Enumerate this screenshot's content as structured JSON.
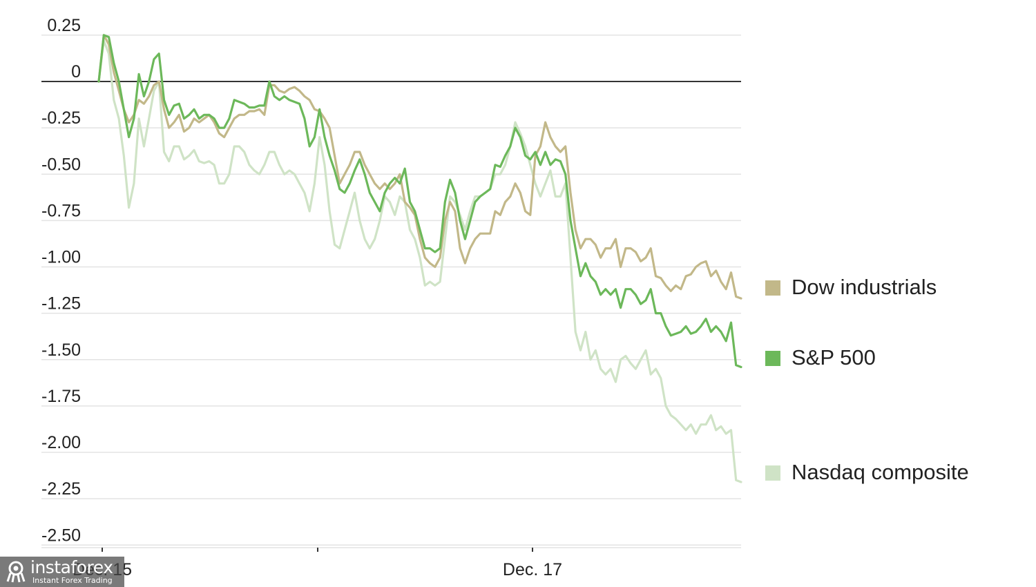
{
  "chart_data": {
    "type": "line",
    "title": "",
    "xlabel": "",
    "ylabel": "",
    "ylim": [
      -2.55,
      0.27
    ],
    "y_ticks": [
      0.25,
      0,
      -0.25,
      -0.5,
      -0.75,
      -1.0,
      -1.25,
      -1.5,
      -1.75,
      -2.0,
      -2.25,
      -2.5
    ],
    "y_tick_labels": [
      "0.25",
      "0",
      "-0.25",
      "-0.50",
      "-0.75",
      "-1.00",
      "-1.25",
      "-1.50",
      "-1.75",
      "-2.00",
      "-2.25",
      "-2.50"
    ],
    "x_ticks": [
      {
        "label": "Dec. 15",
        "at": "Dec. 15"
      },
      {
        "label": "",
        "at": "Dec. 16"
      },
      {
        "label": "Dec. 17",
        "at": "Dec. 17"
      }
    ],
    "grid": true,
    "legend_position": "right",
    "series": [
      {
        "name": "Dow industrials",
        "color": "#c2b889",
        "values": [
          0.0,
          0.25,
          0.2,
          0.05,
          -0.05,
          -0.15,
          -0.22,
          -0.18,
          -0.1,
          -0.12,
          -0.08,
          -0.02,
          0.0,
          -0.15,
          -0.25,
          -0.22,
          -0.18,
          -0.27,
          -0.25,
          -0.2,
          -0.22,
          -0.2,
          -0.18,
          -0.22,
          -0.28,
          -0.3,
          -0.25,
          -0.2,
          -0.18,
          -0.18,
          -0.16,
          -0.16,
          -0.15,
          -0.18,
          -0.02,
          -0.02,
          -0.05,
          -0.06,
          -0.04,
          -0.03,
          -0.05,
          -0.08,
          -0.1,
          -0.15,
          -0.16,
          -0.2,
          -0.25,
          -0.4,
          -0.55,
          -0.5,
          -0.45,
          -0.38,
          -0.38,
          -0.45,
          -0.5,
          -0.55,
          -0.58,
          -0.55,
          -0.58,
          -0.55,
          -0.5,
          -0.65,
          -0.68,
          -0.72,
          -0.85,
          -0.95,
          -0.98,
          -1.0,
          -0.95,
          -0.75,
          -0.65,
          -0.7,
          -0.9,
          -0.98,
          -0.9,
          -0.85,
          -0.82,
          -0.82,
          -0.82,
          -0.7,
          -0.72,
          -0.65,
          -0.62,
          -0.55,
          -0.6,
          -0.7,
          -0.72,
          -0.4,
          -0.35,
          -0.22,
          -0.3,
          -0.35,
          -0.38,
          -0.35,
          -0.6,
          -0.8,
          -0.9,
          -0.85,
          -0.85,
          -0.88,
          -0.95,
          -0.9,
          -0.9,
          -0.85,
          -1.0,
          -0.9,
          -0.9,
          -0.92,
          -0.97,
          -0.95,
          -0.9,
          -1.05,
          -1.06,
          -1.1,
          -1.13,
          -1.1,
          -1.12,
          -1.05,
          -1.04,
          -1.0,
          -0.98,
          -0.97,
          -1.05,
          -1.02,
          -1.08,
          -1.12,
          -1.03,
          -1.16,
          -1.17
        ]
      },
      {
        "name": "S&P 500",
        "color": "#6cb85a",
        "values": [
          0.0,
          0.25,
          0.24,
          0.1,
          0.0,
          -0.15,
          -0.3,
          -0.2,
          0.04,
          -0.08,
          0.0,
          0.12,
          0.15,
          -0.1,
          -0.18,
          -0.13,
          -0.12,
          -0.2,
          -0.18,
          -0.15,
          -0.2,
          -0.18,
          -0.18,
          -0.2,
          -0.25,
          -0.25,
          -0.2,
          -0.1,
          -0.11,
          -0.12,
          -0.14,
          -0.14,
          -0.13,
          -0.13,
          0.0,
          -0.08,
          -0.1,
          -0.08,
          -0.1,
          -0.11,
          -0.12,
          -0.2,
          -0.35,
          -0.3,
          -0.15,
          -0.3,
          -0.4,
          -0.48,
          -0.58,
          -0.6,
          -0.55,
          -0.48,
          -0.42,
          -0.5,
          -0.6,
          -0.65,
          -0.7,
          -0.6,
          -0.55,
          -0.52,
          -0.55,
          -0.47,
          -0.65,
          -0.7,
          -0.8,
          -0.9,
          -0.9,
          -0.92,
          -0.9,
          -0.65,
          -0.53,
          -0.6,
          -0.75,
          -0.85,
          -0.75,
          -0.65,
          -0.62,
          -0.6,
          -0.58,
          -0.45,
          -0.46,
          -0.4,
          -0.35,
          -0.25,
          -0.3,
          -0.4,
          -0.42,
          -0.38,
          -0.45,
          -0.38,
          -0.45,
          -0.42,
          -0.43,
          -0.5,
          -0.75,
          -0.9,
          -1.05,
          -0.98,
          -1.05,
          -1.08,
          -1.15,
          -1.12,
          -1.15,
          -1.12,
          -1.22,
          -1.12,
          -1.12,
          -1.15,
          -1.2,
          -1.18,
          -1.12,
          -1.25,
          -1.25,
          -1.32,
          -1.37,
          -1.36,
          -1.35,
          -1.32,
          -1.36,
          -1.35,
          -1.32,
          -1.28,
          -1.35,
          -1.32,
          -1.35,
          -1.4,
          -1.3,
          -1.53,
          -1.54
        ]
      },
      {
        "name": "Nasdaq composite",
        "color": "#cfe3c6",
        "values": [
          0.0,
          0.22,
          0.15,
          -0.1,
          -0.2,
          -0.4,
          -0.68,
          -0.55,
          -0.2,
          -0.35,
          -0.2,
          -0.05,
          0.0,
          -0.38,
          -0.43,
          -0.35,
          -0.35,
          -0.42,
          -0.4,
          -0.37,
          -0.43,
          -0.44,
          -0.43,
          -0.45,
          -0.55,
          -0.55,
          -0.5,
          -0.35,
          -0.35,
          -0.38,
          -0.45,
          -0.48,
          -0.5,
          -0.45,
          -0.38,
          -0.38,
          -0.45,
          -0.5,
          -0.48,
          -0.5,
          -0.55,
          -0.6,
          -0.7,
          -0.55,
          -0.3,
          -0.45,
          -0.7,
          -0.88,
          -0.9,
          -0.8,
          -0.7,
          -0.6,
          -0.75,
          -0.85,
          -0.9,
          -0.85,
          -0.75,
          -0.62,
          -0.65,
          -0.72,
          -0.62,
          -0.65,
          -0.8,
          -0.85,
          -0.95,
          -1.1,
          -1.08,
          -1.1,
          -1.08,
          -0.85,
          -0.62,
          -0.65,
          -0.72,
          -0.8,
          -0.7,
          -0.62,
          -0.62,
          -0.6,
          -0.58,
          -0.5,
          -0.5,
          -0.45,
          -0.35,
          -0.22,
          -0.28,
          -0.35,
          -0.45,
          -0.55,
          -0.62,
          -0.55,
          -0.48,
          -0.62,
          -0.62,
          -0.55,
          -0.95,
          -1.35,
          -1.45,
          -1.35,
          -1.5,
          -1.45,
          -1.55,
          -1.58,
          -1.55,
          -1.62,
          -1.5,
          -1.48,
          -1.52,
          -1.55,
          -1.5,
          -1.45,
          -1.58,
          -1.55,
          -1.6,
          -1.75,
          -1.8,
          -1.82,
          -1.85,
          -1.88,
          -1.85,
          -1.9,
          -1.85,
          -1.85,
          -1.8,
          -1.88,
          -1.86,
          -1.9,
          -1.88,
          -2.15,
          -2.16
        ]
      }
    ]
  },
  "watermark": {
    "brand": "instaforex",
    "tagline": "Instant Forex Trading"
  }
}
